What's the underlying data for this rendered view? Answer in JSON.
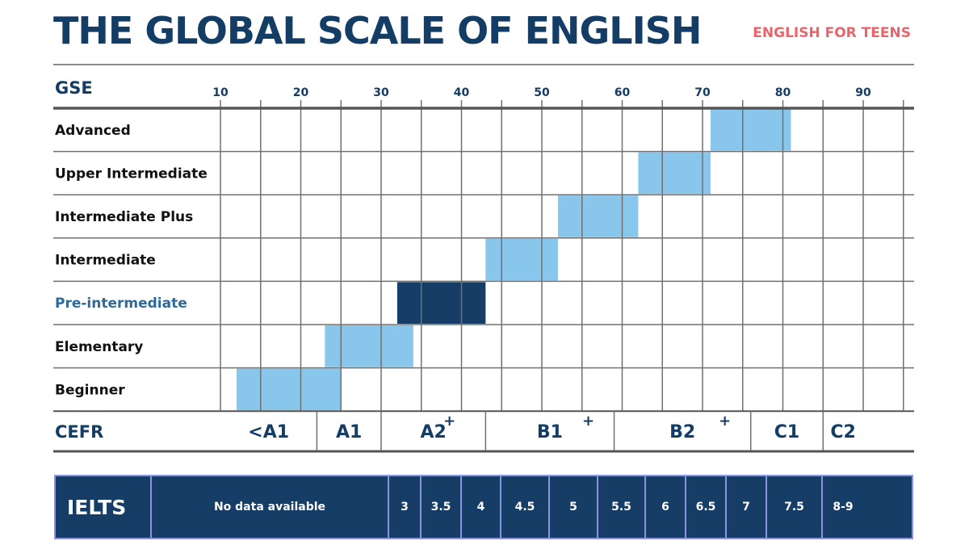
{
  "title": "THE GLOBAL SCALE OF ENGLISH",
  "subtitle": "ENGLISH FOR TEENS",
  "gse": {
    "label": "GSE",
    "ticks": [
      "10",
      "20",
      "30",
      "40",
      "50",
      "60",
      "70",
      "80",
      "90"
    ]
  },
  "levels": [
    {
      "name": "Advanced",
      "from": 71,
      "to": 81,
      "highlight": false
    },
    {
      "name": "Upper Intermediate",
      "from": 62,
      "to": 71,
      "highlight": false
    },
    {
      "name": "Intermediate Plus",
      "from": 52,
      "to": 62,
      "highlight": false
    },
    {
      "name": "Intermediate",
      "from": 43,
      "to": 52,
      "highlight": false
    },
    {
      "name": "Pre-intermediate",
      "from": 32,
      "to": 43,
      "highlight": true
    },
    {
      "name": "Elementary",
      "from": 23,
      "to": 34,
      "highlight": false
    },
    {
      "name": "Beginner",
      "from": 12,
      "to": 25,
      "highlight": false
    }
  ],
  "cefr": {
    "label": "CEFR",
    "bands": [
      {
        "label": "<A1",
        "from": 10,
        "to": 22,
        "plus": false
      },
      {
        "label": "A1",
        "from": 22,
        "to": 30,
        "plus": false
      },
      {
        "label": "A2",
        "from": 30,
        "to": 43,
        "plus": true
      },
      {
        "label": "B1",
        "from": 43,
        "to": 59,
        "plus": true
      },
      {
        "label": "B2",
        "from": 59,
        "to": 76,
        "plus": true
      },
      {
        "label": "C1",
        "from": 76,
        "to": 85,
        "plus": false
      },
      {
        "label": "C2",
        "from": 85,
        "to": 90,
        "plus": false
      }
    ],
    "plus_symbol": "+"
  },
  "ielts": {
    "label": "IELTS",
    "cells": [
      {
        "label": "No data available",
        "from": 10,
        "to": 31
      },
      {
        "label": "3",
        "from": 31,
        "to": 35
      },
      {
        "label": "3.5",
        "from": 35,
        "to": 40
      },
      {
        "label": "4",
        "from": 40,
        "to": 45
      },
      {
        "label": "4.5",
        "from": 45,
        "to": 51
      },
      {
        "label": "5",
        "from": 51,
        "to": 57
      },
      {
        "label": "5.5",
        "from": 57,
        "to": 63
      },
      {
        "label": "6",
        "from": 63,
        "to": 68
      },
      {
        "label": "6.5",
        "from": 68,
        "to": 73
      },
      {
        "label": "7",
        "from": 73,
        "to": 78
      },
      {
        "label": "7.5",
        "from": 78,
        "to": 85
      },
      {
        "label": "8-9",
        "from": 85,
        "to": 90
      }
    ]
  },
  "colors": {
    "navy": "#143d66",
    "bar": "#88c6ec",
    "bar_highlight": "#153d65",
    "accent": "#e8656b",
    "grid": "#707070",
    "ielts_border": "#8a92e6"
  }
}
